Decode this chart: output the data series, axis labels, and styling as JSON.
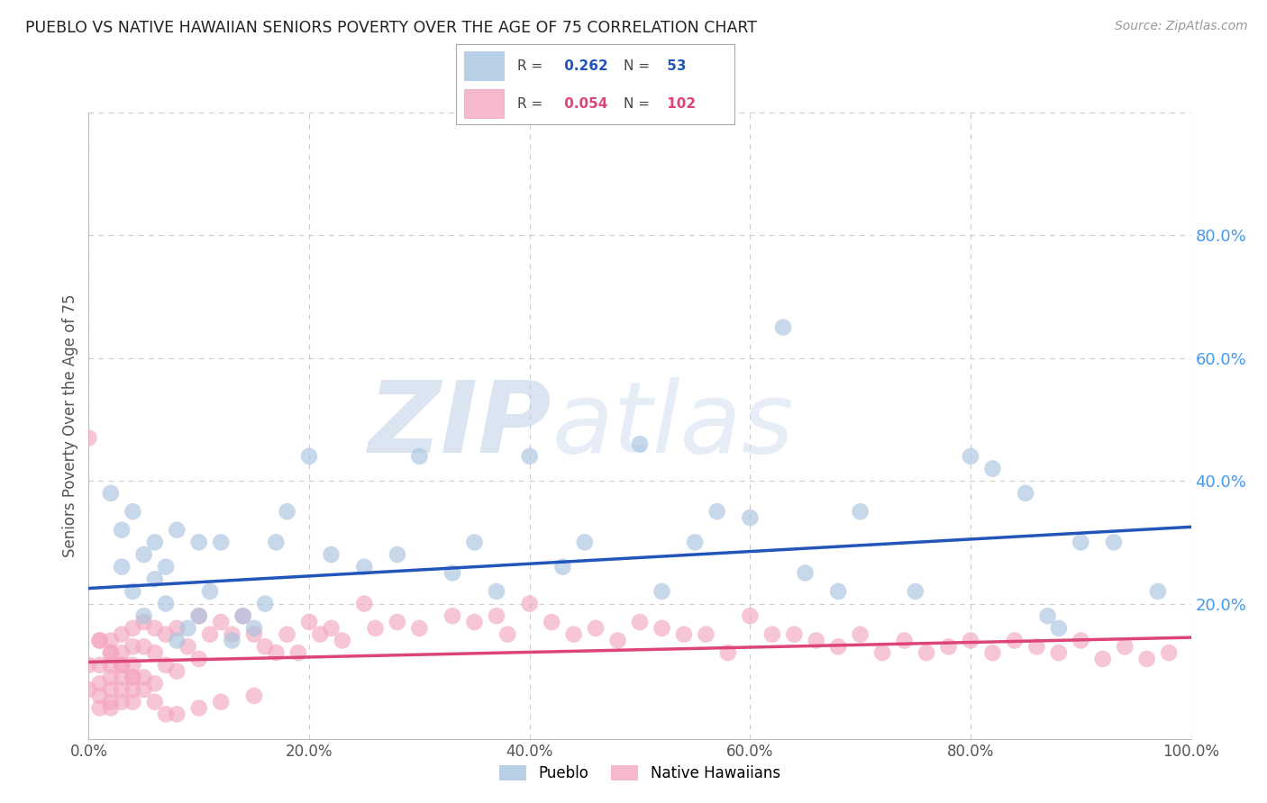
{
  "title": "PUEBLO VS NATIVE HAWAIIAN SENIORS POVERTY OVER THE AGE OF 75 CORRELATION CHART",
  "source": "Source: ZipAtlas.com",
  "ylabel": "Seniors Poverty Over the Age of 75",
  "watermark_zip": "ZIP",
  "watermark_atlas": "atlas",
  "pueblo_color": "#a8c4e0",
  "hawaiian_color": "#f4a8c0",
  "pueblo_line_color": "#2255bb",
  "hawaiian_line_color": "#dd4477",
  "bg_color": "#ffffff",
  "grid_color": "#cccccc",
  "title_color": "#222222",
  "axis_label_color": "#555555",
  "right_tick_color": "#4499ee",
  "watermark_color": "#d0dff0",
  "xlim": [
    0.0,
    1.0
  ],
  "ylim": [
    -0.02,
    1.0
  ],
  "yticks": [
    0.2,
    0.4,
    0.6,
    0.8
  ],
  "xticks": [
    0.0,
    0.2,
    0.4,
    0.6,
    0.8,
    1.0
  ],
  "pueblo_R": 0.262,
  "pueblo_N": 53,
  "hawaiian_R": 0.054,
  "hawaiian_N": 102,
  "pueblo_line_x0": 0.0,
  "pueblo_line_y0": 0.225,
  "pueblo_line_x1": 1.0,
  "pueblo_line_y1": 0.325,
  "hawaiian_line_x0": 0.0,
  "hawaiian_line_y0": 0.105,
  "hawaiian_line_x1": 1.0,
  "hawaiian_line_y1": 0.145,
  "pueblo_x": [
    0.02,
    0.03,
    0.03,
    0.04,
    0.04,
    0.05,
    0.05,
    0.06,
    0.06,
    0.07,
    0.07,
    0.08,
    0.08,
    0.09,
    0.1,
    0.1,
    0.11,
    0.12,
    0.13,
    0.14,
    0.15,
    0.16,
    0.17,
    0.18,
    0.2,
    0.22,
    0.25,
    0.28,
    0.3,
    0.33,
    0.35,
    0.37,
    0.4,
    0.43,
    0.45,
    0.5,
    0.52,
    0.55,
    0.57,
    0.6,
    0.63,
    0.65,
    0.68,
    0.7,
    0.75,
    0.8,
    0.82,
    0.85,
    0.87,
    0.88,
    0.9,
    0.93,
    0.97
  ],
  "pueblo_y": [
    0.38,
    0.32,
    0.26,
    0.35,
    0.22,
    0.28,
    0.18,
    0.3,
    0.24,
    0.26,
    0.2,
    0.32,
    0.14,
    0.16,
    0.3,
    0.18,
    0.22,
    0.3,
    0.14,
    0.18,
    0.16,
    0.2,
    0.3,
    0.35,
    0.44,
    0.28,
    0.26,
    0.28,
    0.44,
    0.25,
    0.3,
    0.22,
    0.44,
    0.26,
    0.3,
    0.46,
    0.22,
    0.3,
    0.35,
    0.34,
    0.65,
    0.25,
    0.22,
    0.35,
    0.22,
    0.44,
    0.42,
    0.38,
    0.18,
    0.16,
    0.3,
    0.3,
    0.22
  ],
  "hawaiian_x": [
    0.0,
    0.0,
    0.01,
    0.01,
    0.01,
    0.01,
    0.01,
    0.02,
    0.02,
    0.02,
    0.02,
    0.02,
    0.02,
    0.02,
    0.03,
    0.03,
    0.03,
    0.03,
    0.03,
    0.03,
    0.04,
    0.04,
    0.04,
    0.04,
    0.04,
    0.04,
    0.05,
    0.05,
    0.05,
    0.06,
    0.06,
    0.06,
    0.07,
    0.07,
    0.08,
    0.08,
    0.09,
    0.1,
    0.1,
    0.11,
    0.12,
    0.13,
    0.14,
    0.15,
    0.16,
    0.17,
    0.18,
    0.19,
    0.2,
    0.21,
    0.22,
    0.23,
    0.25,
    0.26,
    0.28,
    0.3,
    0.33,
    0.35,
    0.37,
    0.38,
    0.4,
    0.42,
    0.44,
    0.46,
    0.48,
    0.5,
    0.52,
    0.54,
    0.56,
    0.58,
    0.6,
    0.62,
    0.64,
    0.66,
    0.68,
    0.7,
    0.72,
    0.74,
    0.76,
    0.78,
    0.8,
    0.82,
    0.84,
    0.86,
    0.88,
    0.9,
    0.92,
    0.94,
    0.96,
    0.98,
    0.0,
    0.01,
    0.02,
    0.03,
    0.04,
    0.05,
    0.06,
    0.07,
    0.08,
    0.1,
    0.12,
    0.15
  ],
  "hawaiian_y": [
    0.1,
    0.06,
    0.14,
    0.1,
    0.07,
    0.05,
    0.03,
    0.14,
    0.12,
    0.1,
    0.08,
    0.06,
    0.04,
    0.03,
    0.15,
    0.12,
    0.1,
    0.08,
    0.06,
    0.04,
    0.16,
    0.13,
    0.1,
    0.08,
    0.06,
    0.04,
    0.17,
    0.13,
    0.08,
    0.16,
    0.12,
    0.07,
    0.15,
    0.1,
    0.16,
    0.09,
    0.13,
    0.18,
    0.11,
    0.15,
    0.17,
    0.15,
    0.18,
    0.15,
    0.13,
    0.12,
    0.15,
    0.12,
    0.17,
    0.15,
    0.16,
    0.14,
    0.2,
    0.16,
    0.17,
    0.16,
    0.18,
    0.17,
    0.18,
    0.15,
    0.2,
    0.17,
    0.15,
    0.16,
    0.14,
    0.17,
    0.16,
    0.15,
    0.15,
    0.12,
    0.18,
    0.15,
    0.15,
    0.14,
    0.13,
    0.15,
    0.12,
    0.14,
    0.12,
    0.13,
    0.14,
    0.12,
    0.14,
    0.13,
    0.12,
    0.14,
    0.11,
    0.13,
    0.11,
    0.12,
    0.47,
    0.14,
    0.12,
    0.1,
    0.08,
    0.06,
    0.04,
    0.02,
    0.02,
    0.03,
    0.04,
    0.05
  ]
}
